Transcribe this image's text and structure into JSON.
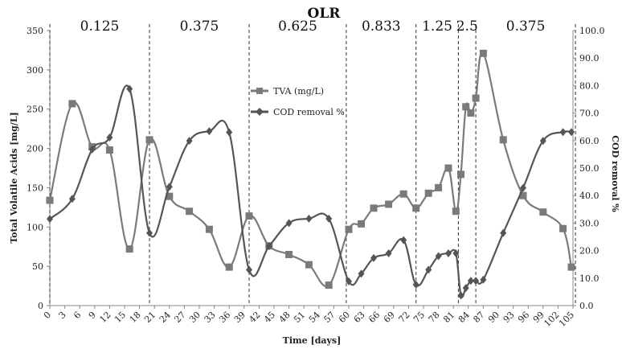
{
  "chart_data": {
    "type": "line",
    "title": "OLR",
    "xlabel": "Time [days]",
    "ylabel_left": "Total Volatile Acids [mg/L]",
    "ylabel_right": "COD removal %",
    "x_ticks": [
      0,
      3,
      6,
      9,
      12,
      15,
      18,
      21,
      24,
      27,
      30,
      33,
      36,
      39,
      42,
      45,
      48,
      51,
      54,
      57,
      60,
      63,
      66,
      69,
      72,
      75,
      78,
      81,
      84,
      87,
      90,
      93,
      96,
      99,
      102,
      105
    ],
    "xlim": [
      0,
      105
    ],
    "ylim_left": [
      0,
      350
    ],
    "ylim_right": [
      0,
      100
    ],
    "y_left_ticks": [
      0,
      50,
      100,
      150,
      200,
      250,
      300,
      350
    ],
    "y_right_ticks": [
      "0.0",
      "10.0",
      "20.0",
      "30.0",
      "40.0",
      "50.0",
      "60.0",
      "70.0",
      "80.0",
      "90.0",
      "100.0"
    ],
    "phases": [
      {
        "label": "0.125",
        "start": 0,
        "end": 20
      },
      {
        "label": "0.375",
        "start": 20,
        "end": 40
      },
      {
        "label": "0.625",
        "start": 40,
        "end": 59.5
      },
      {
        "label": "0.833",
        "start": 59.5,
        "end": 73.5
      },
      {
        "label": "1.25",
        "start": 73.5,
        "end": 82
      },
      {
        "label": "2.5",
        "start": 82,
        "end": 85.5
      },
      {
        "label": "0.375",
        "start": 85.5,
        "end": 105.5
      }
    ],
    "series": [
      {
        "name": "TVA (mg/L)",
        "axis": "left",
        "marker": "square",
        "color": "#7a7a7a",
        "x": [
          0,
          4.5,
          8.5,
          12,
          16,
          20,
          24,
          28,
          32,
          36,
          40,
          44,
          48,
          52,
          56,
          60,
          62.5,
          65,
          68,
          71,
          73.5,
          76,
          78,
          80,
          81.5,
          82.5,
          83.5,
          84.5,
          85.5,
          87,
          91,
          95,
          99,
          103,
          106
        ],
        "values": [
          134,
          257,
          202,
          198,
          72,
          211,
          139,
          120,
          97,
          49,
          114,
          76,
          65,
          52,
          26,
          97,
          104,
          124,
          129,
          142,
          124,
          143,
          150,
          175,
          120,
          167,
          253,
          245,
          264,
          321,
          211,
          140,
          119,
          98,
          49
        ]
      },
      {
        "name": "COD removal %",
        "axis": "right",
        "marker": "diamond",
        "color": "#555555",
        "x": [
          0,
          4.5,
          8.5,
          12,
          16,
          20,
          24,
          28,
          32,
          36,
          40,
          44,
          48,
          52,
          56,
          60,
          62.5,
          65,
          68,
          71,
          73.5,
          76,
          78,
          80,
          81.5,
          82.5,
          83.5,
          84.5,
          85.5,
          87,
          91,
          95,
          99,
          103,
          106
        ],
        "values": [
          31.5,
          38.8,
          56.8,
          61.1,
          78.8,
          26.4,
          43.2,
          59.9,
          63.4,
          63.0,
          13.0,
          21.6,
          30.0,
          31.6,
          31.6,
          8.8,
          11.6,
          17.3,
          19.0,
          23.8,
          7.6,
          13.0,
          18.0,
          19.0,
          19.0,
          3.7,
          6.4,
          9.0,
          9.0,
          9.4,
          26.4,
          42.8,
          59.9,
          63.1,
          63.1
        ]
      }
    ]
  }
}
